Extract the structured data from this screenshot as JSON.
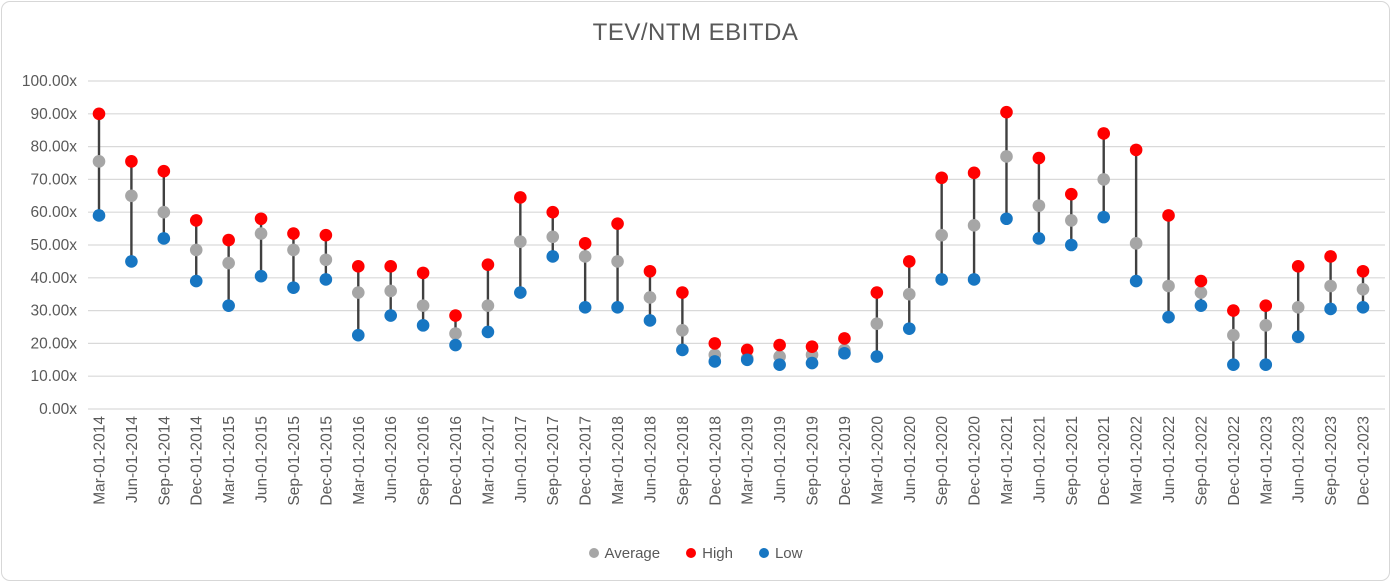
{
  "chart_data": {
    "type": "scatter",
    "variant": "high-low-average range markers (stock style) with connecting bars",
    "title": "TEV/NTM EBITDA",
    "categories": [
      "Mar-01-2014",
      "Jun-01-2014",
      "Sep-01-2014",
      "Dec-01-2014",
      "Mar-01-2015",
      "Jun-01-2015",
      "Sep-01-2015",
      "Dec-01-2015",
      "Mar-01-2016",
      "Jun-01-2016",
      "Sep-01-2016",
      "Dec-01-2016",
      "Mar-01-2017",
      "Jun-01-2017",
      "Sep-01-2017",
      "Dec-01-2017",
      "Mar-01-2018",
      "Jun-01-2018",
      "Sep-01-2018",
      "Dec-01-2018",
      "Mar-01-2019",
      "Jun-01-2019",
      "Sep-01-2019",
      "Dec-01-2019",
      "Mar-01-2020",
      "Jun-01-2020",
      "Sep-01-2020",
      "Dec-01-2020",
      "Mar-01-2021",
      "Jun-01-2021",
      "Sep-01-2021",
      "Dec-01-2021",
      "Mar-01-2022",
      "Jun-01-2022",
      "Sep-01-2022",
      "Dec-01-2022",
      "Mar-01-2023",
      "Jun-01-2023",
      "Sep-01-2023",
      "Dec-01-2023"
    ],
    "series": [
      {
        "name": "Average",
        "color": "#A6A6A6",
        "values": [
          75.5,
          65,
          60,
          48.5,
          44.5,
          53.5,
          48.5,
          45.5,
          35.5,
          36,
          31.5,
          23,
          31.5,
          51,
          52.5,
          46.5,
          45,
          34,
          24,
          16.5,
          15.5,
          16,
          16.5,
          18,
          26,
          35,
          53,
          56,
          77,
          62,
          57.5,
          70,
          50.5,
          37.5,
          35.5,
          22.5,
          25.5,
          31,
          37.5,
          36.5
        ]
      },
      {
        "name": "High",
        "color": "#FF0000",
        "values": [
          90,
          75.5,
          72.5,
          57.5,
          51.5,
          58,
          53.5,
          53,
          43.5,
          43.5,
          41.5,
          28.5,
          44,
          64.5,
          60,
          50.5,
          56.5,
          42,
          35.5,
          20,
          18,
          19.5,
          19,
          21.5,
          35.5,
          45,
          70.5,
          72,
          90.5,
          76.5,
          65.5,
          84,
          79,
          59,
          39,
          30,
          31.5,
          43.5,
          46.5,
          42
        ]
      },
      {
        "name": "Low",
        "color": "#1776C2",
        "values": [
          59,
          45,
          52,
          39,
          31.5,
          40.5,
          37,
          39.5,
          22.5,
          28.5,
          25.5,
          19.5,
          23.5,
          35.5,
          46.5,
          31,
          31,
          27,
          18,
          14.5,
          15,
          13.5,
          14,
          17,
          16,
          24.5,
          39.5,
          39.5,
          58,
          52,
          50,
          58.5,
          39,
          28,
          31.5,
          13.5,
          13.5,
          22,
          30.5,
          31
        ]
      }
    ],
    "ylim": [
      0,
      100
    ],
    "ytick_step": 10,
    "ytick_labels": [
      "0.00x",
      "10.00x",
      "20.00x",
      "30.00x",
      "40.00x",
      "50.00x",
      "60.00x",
      "70.00x",
      "80.00x",
      "90.00x",
      "100.00x"
    ],
    "grid": "horizontal",
    "gridline_color": "#D9D9D9",
    "hilo_bar_color": "#404040",
    "axis_text_color": "#595959",
    "legend_position": "bottom"
  },
  "legend": {
    "items": [
      {
        "label": "Average",
        "color": "#A6A6A6"
      },
      {
        "label": "High",
        "color": "#FF0000"
      },
      {
        "label": "Low",
        "color": "#1776C2"
      }
    ]
  }
}
